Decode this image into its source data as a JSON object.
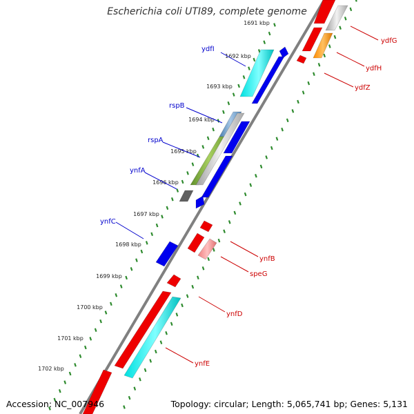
{
  "title": "Escherichia coli UTI89, complete genome",
  "accession": "Accession: NC_007946",
  "topology": "Topology: circular; Length: 5,065,741 bp; Genes: 5,131",
  "colors": {
    "backbone": "#808080",
    "tick": "#2d8a2d",
    "forward_label": "#0000cc",
    "reverse_label": "#cc0000",
    "forward_gene": "#0000ee",
    "reverse_gene": "#ee0000"
  },
  "ruler_labels": [
    "1691 kbp",
    "1692 kbp",
    "1693 kbp",
    "1694 kbp",
    "1695 kbp",
    "1696 kbp",
    "1697 kbp",
    "1698 kbp",
    "1699 kbp",
    "1700 kbp",
    "1701 kbp",
    "1702 kbp"
  ],
  "forward_gene_labels": [
    "ydfI",
    "rspB",
    "rspA",
    "ynfA",
    "ynfC"
  ],
  "reverse_gene_labels": [
    "ydfG",
    "ydfH",
    "ydfZ",
    "ynfB",
    "speG",
    "ynfD",
    "ynfE"
  ]
}
